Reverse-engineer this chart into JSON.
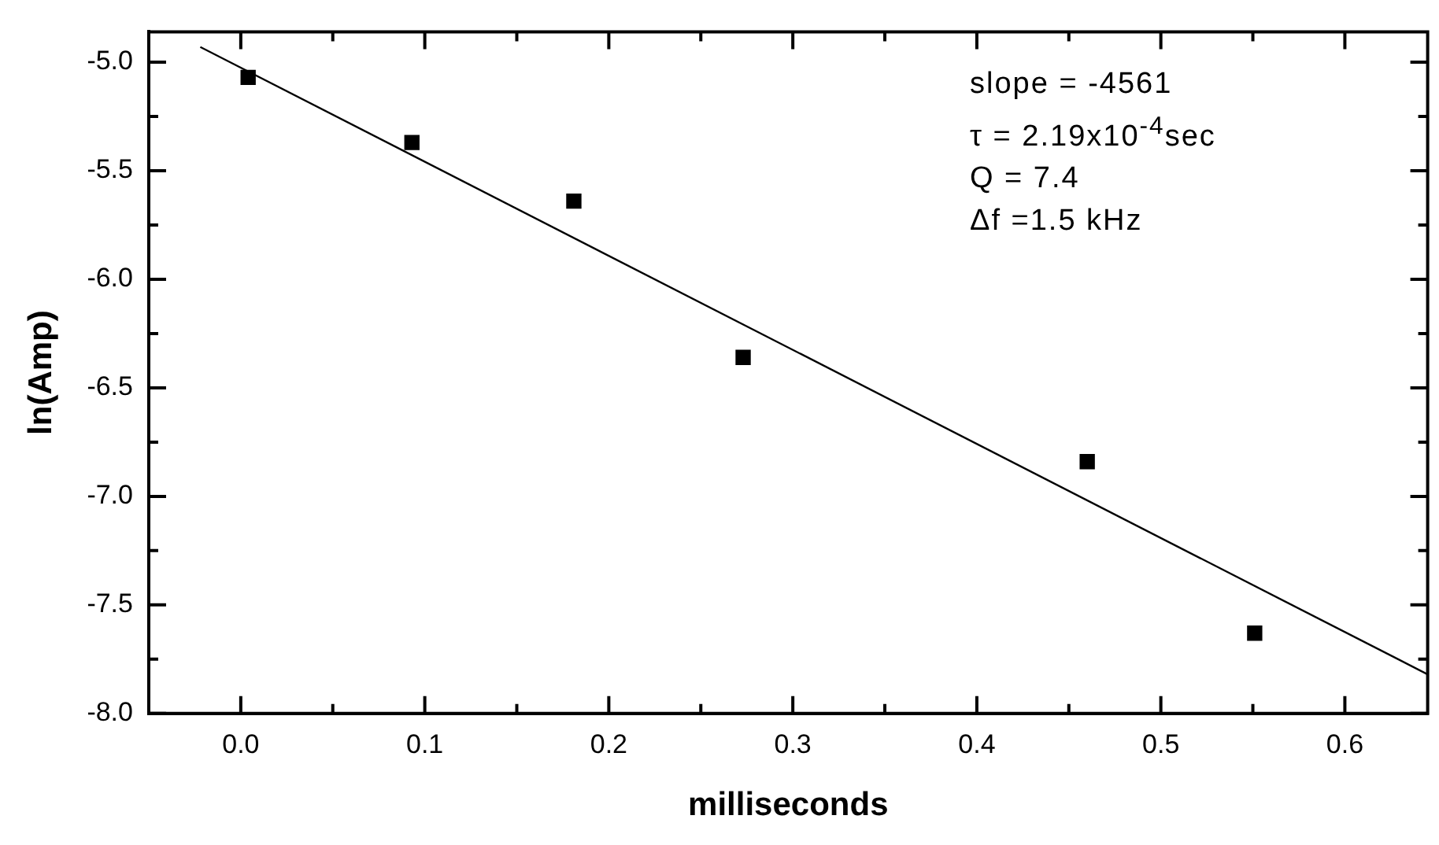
{
  "chart_data": {
    "type": "scatter",
    "xlabel": "milliseconds",
    "ylabel": "ln(Amp)",
    "xlim": [
      -0.05,
      0.645
    ],
    "ylim": [
      -8.0,
      -4.86
    ],
    "xticks": [
      {
        "value": -0.05,
        "label": null
      },
      {
        "value": 0,
        "label": "0.0"
      },
      {
        "value": 0.05,
        "label": null
      },
      0.1,
      {
        "value": 0.15,
        "label": null
      },
      0.2,
      {
        "value": 0.25,
        "label": null
      },
      0.3,
      {
        "value": 0.35,
        "label": null
      },
      0.4,
      {
        "value": 0.45,
        "label": null
      },
      0.5,
      {
        "value": 0.55,
        "label": null
      },
      0.6
    ],
    "yticks": [
      {
        "value": -8,
        "label": "-8.0"
      },
      {
        "value": -7.75,
        "label": null
      },
      -7.5,
      {
        "value": -7.25,
        "label": null
      },
      {
        "value": -7,
        "label": "-7.0"
      },
      {
        "value": -6.75,
        "label": null
      },
      -6.5,
      {
        "value": -6.25,
        "label": null
      },
      {
        "value": -6,
        "label": "-6.0"
      },
      {
        "value": -5.75,
        "label": null
      },
      -5.5,
      {
        "value": -5.25,
        "label": null
      },
      {
        "value": -5,
        "label": "-5.0"
      }
    ],
    "grid": false,
    "legend": false,
    "series": [
      {
        "type": "scatter",
        "color": "#000000",
        "marker": "square",
        "x": [
          0.004,
          0.093,
          0.181,
          0.273,
          0.46,
          0.551
        ],
        "values": [
          -5.07,
          -5.37,
          -5.64,
          -6.36,
          -6.84,
          -7.63
        ]
      },
      {
        "type": "line",
        "color": "#000000",
        "marker": "none",
        "line_style": "solid",
        "x": [
          -0.022,
          0.645
        ],
        "values": [
          -4.93,
          -7.82
        ]
      }
    ],
    "annotations": [
      "slope =  -4561",
      "τ = 2.19x10$^{-4}$sec",
      "Q = 7.4",
      "Δf =1.5 kHz"
    ]
  }
}
